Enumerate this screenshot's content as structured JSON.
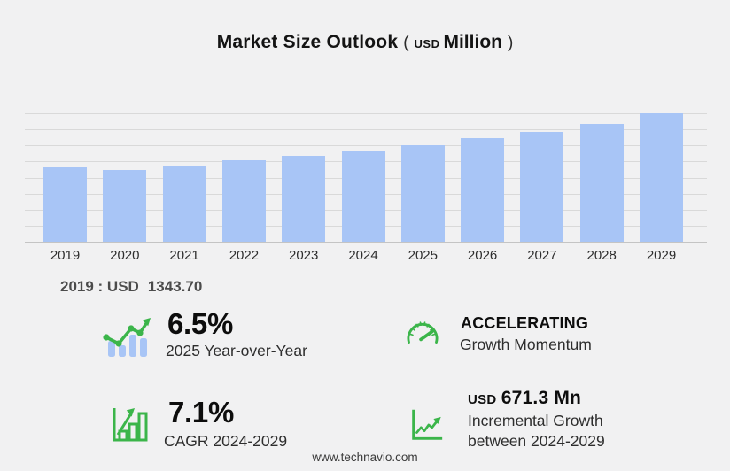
{
  "title": {
    "main": "Market Size Outlook",
    "open_paren": "(",
    "currency": "USD",
    "unit": "Million",
    "close_paren": ")"
  },
  "chart_data": {
    "type": "bar",
    "title": "Market Size Outlook (USD Million)",
    "unit": "USD Million",
    "categories": [
      "2019",
      "2020",
      "2021",
      "2022",
      "2023",
      "2024",
      "2025",
      "2026",
      "2027",
      "2028",
      "2029"
    ],
    "values": [
      1343.7,
      1283,
      1358,
      1459,
      1540,
      1634,
      1740,
      1858,
      1970,
      2120,
      2305
    ],
    "xlabel": "",
    "ylabel": "",
    "ylim": [
      0,
      2310
    ],
    "grid": true,
    "gridline_count": 9,
    "legend_position": "none",
    "bar_color": "#a8c5f6",
    "labeled_point": {
      "category": "2019",
      "value": "1343.70"
    }
  },
  "annotation": {
    "prefix": "2019 : USD",
    "value": "1343.70"
  },
  "stats": {
    "yoy": {
      "icon": "bars-trend-arrow-icon",
      "value": "6.5%",
      "label": "2025 Year-over-Year"
    },
    "momentum": {
      "icon": "speedometer-icon",
      "value": "ACCELERATING",
      "label": "Growth Momentum"
    },
    "cagr": {
      "icon": "bar-chart-growth-icon",
      "value": "7.1%",
      "label": "CAGR 2024-2029"
    },
    "incremental": {
      "icon": "line-chart-up-icon",
      "currency": "USD",
      "value": "671.3 Mn",
      "label_line1": "Incremental Growth",
      "label_line2": "between 2024-2029"
    }
  },
  "footer": {
    "website": "www.technavio.com"
  },
  "colors": {
    "background": "#f1f1f2",
    "bar": "#a8c5f6",
    "accent_green": "#3bb54a",
    "gridline": "#d9d9d9",
    "axis": "#c4c4c4",
    "text_dark": "#0d0d0d",
    "text_medium": "#2e2e2e",
    "annotation_text": "#4b4b4b"
  }
}
